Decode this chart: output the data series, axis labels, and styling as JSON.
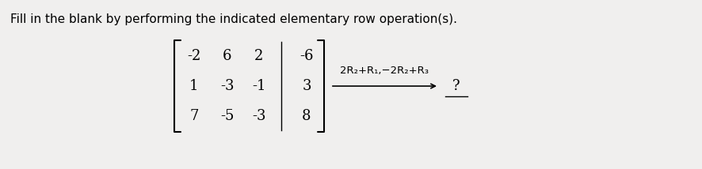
{
  "title_text": "Fill in the blank by performing the indicated elementary row operation(s).",
  "matrix_rows": [
    [
      "-2",
      "6",
      "2",
      "-6"
    ],
    [
      "1",
      "-3",
      "-1",
      "3"
    ],
    [
      "7",
      "-5",
      "-3",
      "8"
    ]
  ],
  "operation_text": "2R₂+R₁,−2R₂+R₃",
  "answer_text": "?",
  "bg_color": "#f0efee",
  "text_color": "#000000",
  "title_fontsize": 11,
  "matrix_fontsize": 13,
  "op_fontsize": 9.5
}
